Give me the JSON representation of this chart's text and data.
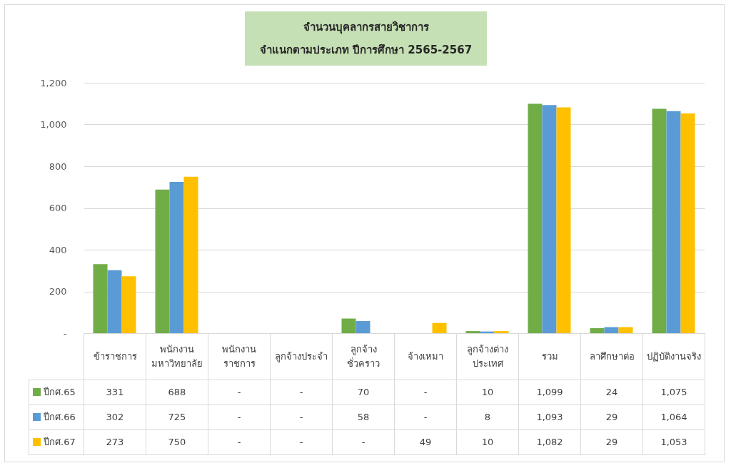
{
  "chart_data": {
    "type": "bar",
    "title": "จำนวนบุคลากรสายวิชาการ",
    "subtitle": "จำแนกตามประเภท ปีการศึกษา 2565-2567",
    "categories": [
      "ข้าราชการ",
      "พนักงานมหาวิทยาลัย",
      "พนักงานราชการ",
      "ลูกจ้างประจำ",
      "ลูกจ้างชั่วคราว",
      "จ้างเหมา",
      "ลูกจ้างต่างประเทศ",
      "รวม",
      "ลาศึกษาต่อ",
      "ปฏิบัติงานจริง"
    ],
    "series": [
      {
        "name": "ปีกศ.65",
        "color": "#70ad47",
        "values": [
          331,
          688,
          null,
          null,
          70,
          null,
          10,
          1099,
          24,
          1075
        ],
        "value_labels": [
          "331",
          "688",
          "-",
          "-",
          "70",
          "-",
          "10",
          "1,099",
          "24",
          "1,075"
        ]
      },
      {
        "name": "ปีกศ.66",
        "color": "#5b9bd5",
        "values": [
          302,
          725,
          null,
          null,
          58,
          null,
          8,
          1093,
          29,
          1064
        ],
        "value_labels": [
          "302",
          "725",
          "-",
          "-",
          "58",
          "-",
          "8",
          "1,093",
          "29",
          "1,064"
        ]
      },
      {
        "name": "ปีกศ.67",
        "color": "#ffc000",
        "values": [
          273,
          750,
          null,
          null,
          null,
          49,
          10,
          1082,
          29,
          1053
        ],
        "value_labels": [
          "273",
          "750",
          "-",
          "-",
          "-",
          "49",
          "10",
          "1,082",
          "29",
          "1,053"
        ]
      }
    ],
    "ylim": [
      0,
      1200
    ],
    "yticks": [
      {
        "value": 0,
        "label": "-"
      },
      200,
      400,
      600,
      800,
      {
        "value": 1000,
        "label": "1,000"
      },
      {
        "value": 1200,
        "label": "1,200"
      }
    ],
    "grid": "y",
    "legend": "bottom"
  }
}
